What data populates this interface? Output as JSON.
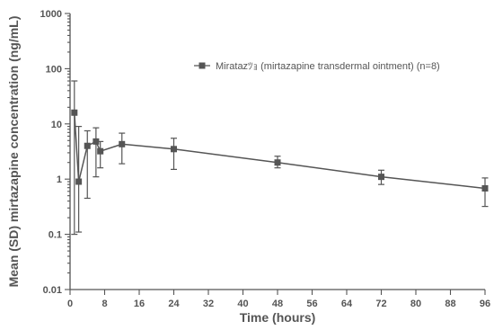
{
  "chart_data": {
    "type": "line",
    "xlabel": "Time (hours)",
    "ylabel": "Mean (SD) mirtazapine concentration (ng/mL)",
    "xlim": [
      0,
      96
    ],
    "ylim": [
      0.01,
      1000
    ],
    "yscale": "log",
    "xticks": [
      0,
      8,
      16,
      24,
      32,
      40,
      48,
      56,
      64,
      72,
      80,
      88,
      96
    ],
    "yticks": [
      0.01,
      0.1,
      1,
      10,
      100,
      1000
    ],
    "ytick_labels": [
      "0.01",
      "0.1",
      "1",
      "10",
      "100",
      "1000"
    ],
    "legend_position": "top-right",
    "colors": {
      "series": "#555555",
      "axis": "#555555",
      "background": "#ffffff"
    },
    "series": [
      {
        "name": "Miratazﾂｮ (mirtazapine transdermal ointment) (n=8)",
        "marker": "square",
        "x": [
          1,
          2,
          4,
          6,
          7,
          12,
          24,
          48,
          72,
          96
        ],
        "y": [
          16,
          0.9,
          4.0,
          4.8,
          3.2,
          4.3,
          3.5,
          2.0,
          1.1,
          0.68
        ],
        "err_low": [
          0.1,
          0.11,
          0.45,
          1.1,
          1.6,
          1.9,
          1.5,
          1.6,
          0.8,
          0.32
        ],
        "err_high": [
          60,
          9,
          7.5,
          8.5,
          4.8,
          6.8,
          5.5,
          2.6,
          1.45,
          1.05
        ]
      }
    ]
  }
}
